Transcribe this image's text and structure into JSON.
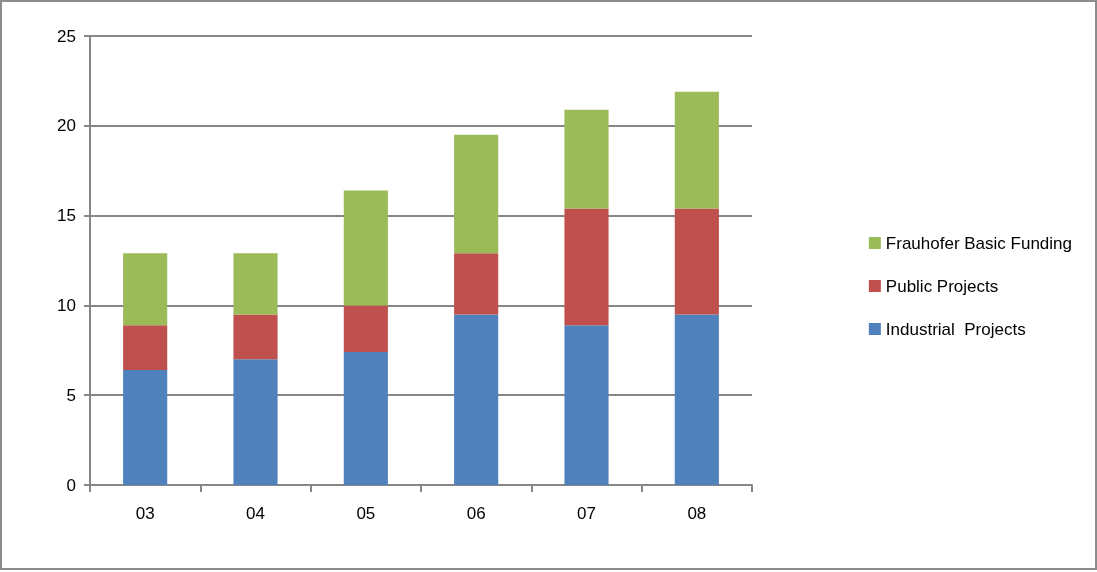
{
  "chart_data": {
    "type": "bar",
    "stacked": true,
    "categories": [
      "03",
      "04",
      "05",
      "06",
      "07",
      "08"
    ],
    "series": [
      {
        "name": "Industrial  Projects",
        "color": "#4f81bd",
        "values": [
          6.4,
          7.0,
          7.4,
          9.5,
          8.9,
          9.5
        ]
      },
      {
        "name": "Public Projects",
        "color": "#c0504d",
        "values": [
          2.5,
          2.5,
          2.6,
          3.4,
          6.5,
          5.9
        ]
      },
      {
        "name": "Frauhofer Basic Funding",
        "color": "#9bbb59",
        "values": [
          4.0,
          3.4,
          6.4,
          6.6,
          5.5,
          6.5
        ]
      }
    ],
    "ylim": [
      0,
      25
    ],
    "yticks": [
      0,
      5,
      10,
      15,
      20,
      25
    ],
    "grid": "y",
    "legend": "right"
  }
}
